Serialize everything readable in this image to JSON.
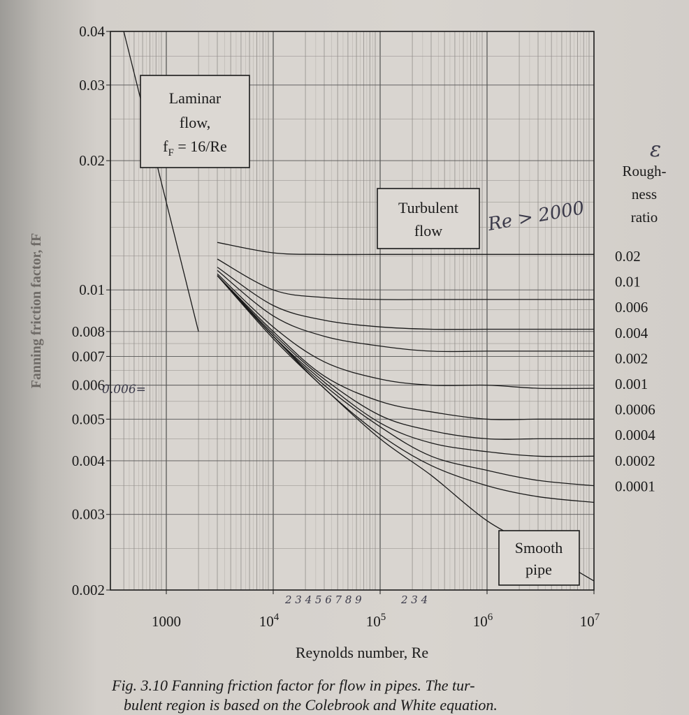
{
  "chart_data": {
    "type": "line",
    "xscale": "log",
    "yscale": "log",
    "xlim": [
      300,
      10000000
    ],
    "ylim": [
      0.002,
      0.04
    ],
    "xlabel": "Reynolds number, Re",
    "ylabel": "Fanning friction factor, fF",
    "x_ticks": [
      {
        "value": 1000,
        "label": "1000"
      },
      {
        "value": 10000,
        "label": "10",
        "exp": "4"
      },
      {
        "value": 100000,
        "label": "10",
        "exp": "5"
      },
      {
        "value": 1000000,
        "label": "10",
        "exp": "6"
      },
      {
        "value": 10000000,
        "label": "10",
        "exp": "7"
      }
    ],
    "y_ticks": [
      {
        "value": 0.04,
        "label": "0.04"
      },
      {
        "value": 0.03,
        "label": "0.03"
      },
      {
        "value": 0.02,
        "label": "0.02"
      },
      {
        "value": 0.01,
        "label": "0.01"
      },
      {
        "value": 0.008,
        "label": "0.008"
      },
      {
        "value": 0.007,
        "label": "0.007"
      },
      {
        "value": 0.006,
        "label": "0.006"
      },
      {
        "value": 0.005,
        "label": "0.005"
      },
      {
        "value": 0.004,
        "label": "0.004"
      },
      {
        "value": 0.003,
        "label": "0.003"
      },
      {
        "value": 0.002,
        "label": "0.002"
      }
    ],
    "grid": true,
    "laminar": {
      "name": "Laminar flow, fF = 16/Re",
      "x": [
        400,
        2000
      ],
      "y": [
        0.04,
        0.008
      ]
    },
    "roughness_header": [
      "Rough-",
      "ness",
      "ratio"
    ],
    "series": [
      {
        "name": "0.02",
        "x": [
          3000,
          10000,
          30000,
          100000,
          300000,
          1000000,
          3000000,
          10000000
        ],
        "y": [
          0.0129,
          0.0122,
          0.0121,
          0.0121,
          0.0121,
          0.0121,
          0.0121,
          0.0121
        ]
      },
      {
        "name": "0.01",
        "x": [
          3000,
          10000,
          30000,
          100000,
          300000,
          1000000,
          3000000,
          10000000
        ],
        "y": [
          0.0118,
          0.01,
          0.0096,
          0.0095,
          0.0095,
          0.0095,
          0.0095,
          0.0095
        ]
      },
      {
        "name": "0.006",
        "x": [
          3000,
          10000,
          30000,
          100000,
          300000,
          1000000,
          3000000,
          10000000
        ],
        "y": [
          0.0113,
          0.0092,
          0.0085,
          0.0082,
          0.0081,
          0.0081,
          0.0081,
          0.0081
        ]
      },
      {
        "name": "0.004",
        "x": [
          3000,
          10000,
          30000,
          100000,
          300000,
          1000000,
          3000000,
          10000000
        ],
        "y": [
          0.0111,
          0.0087,
          0.0078,
          0.0074,
          0.0072,
          0.0072,
          0.0072,
          0.0072
        ]
      },
      {
        "name": "0.002",
        "x": [
          3000,
          10000,
          30000,
          100000,
          300000,
          1000000,
          3000000,
          10000000
        ],
        "y": [
          0.0109,
          0.0082,
          0.0068,
          0.0062,
          0.006,
          0.006,
          0.0059,
          0.0059
        ]
      },
      {
        "name": "0.001",
        "x": [
          3000,
          10000,
          30000,
          100000,
          300000,
          1000000,
          3000000,
          10000000
        ],
        "y": [
          0.0108,
          0.008,
          0.0063,
          0.0055,
          0.0052,
          0.005,
          0.005,
          0.005
        ]
      },
      {
        "name": "0.0006",
        "x": [
          3000,
          10000,
          30000,
          100000,
          300000,
          1000000,
          3000000,
          10000000
        ],
        "y": [
          0.0108,
          0.0079,
          0.0062,
          0.0051,
          0.0047,
          0.0045,
          0.0045,
          0.0045
        ]
      },
      {
        "name": "0.0004",
        "x": [
          3000,
          10000,
          30000,
          100000,
          300000,
          1000000,
          3000000,
          10000000
        ],
        "y": [
          0.0108,
          0.0078,
          0.0061,
          0.0049,
          0.0044,
          0.0042,
          0.0041,
          0.0041
        ]
      },
      {
        "name": "0.0002",
        "x": [
          3000,
          10000,
          30000,
          100000,
          300000,
          1000000,
          3000000,
          10000000
        ],
        "y": [
          0.0108,
          0.0078,
          0.006,
          0.0048,
          0.0041,
          0.0038,
          0.0036,
          0.0035
        ]
      },
      {
        "name": "0.0001",
        "x": [
          3000,
          10000,
          30000,
          100000,
          300000,
          1000000,
          3000000,
          10000000
        ],
        "y": [
          0.0108,
          0.0078,
          0.0059,
          0.0046,
          0.0039,
          0.0035,
          0.0033,
          0.0032
        ]
      },
      {
        "name": "Smooth pipe",
        "x": [
          3000,
          10000,
          30000,
          100000,
          300000,
          1000000,
          3000000,
          10000000
        ],
        "y": [
          0.0108,
          0.0077,
          0.0059,
          0.0045,
          0.0037,
          0.0029,
          0.0025,
          0.0021
        ]
      }
    ],
    "annotations": {
      "laminar_box": [
        "Laminar",
        "flow,",
        "f",
        "F",
        " = 16/Re"
      ],
      "turbulent_box": [
        "Turbulent",
        "flow"
      ],
      "smooth_box": [
        "Smooth",
        "pipe"
      ]
    },
    "handwriting": {
      "epsilon": "ε",
      "re_note": "Re > 2000",
      "left_mark": "0.006=",
      "bottom_digits_1": "2  3 4 5 6 7 8 9",
      "bottom_digits_2": "2  3  4"
    }
  },
  "caption": {
    "line1": "Fig. 3.10   Fanning friction factor for flow in pipes.  The tur-",
    "line2": "bulent region is based on the Colebrook and White equation."
  }
}
